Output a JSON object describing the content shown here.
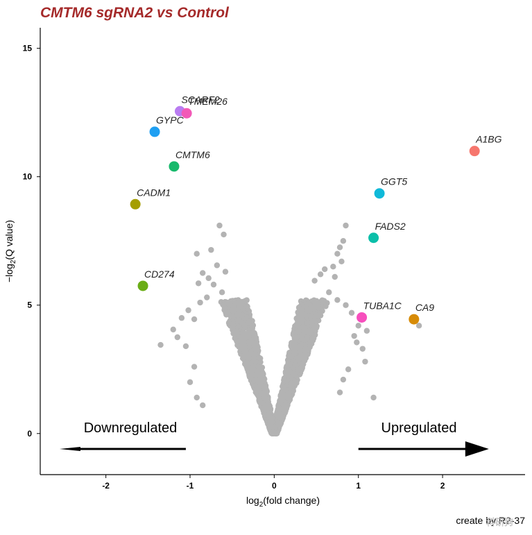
{
  "chart_data": {
    "type": "scatter",
    "title": "CMTM6 sgRNA2 vs Control",
    "title_color": "#a52a2a",
    "xlabel": "log2(fold change)",
    "ylabel": "-log2(Q value)",
    "xlim": [
      -2.78,
      2.98
    ],
    "ylim": [
      -1.6,
      15.8
    ],
    "xticks": [
      -2,
      -1,
      0,
      1,
      2
    ],
    "yticks": [
      0,
      5,
      10,
      15
    ],
    "grid": false,
    "background_color": "#b3b3b3",
    "down_label": "Downregulated",
    "up_label": "Upregulated",
    "arrows": {
      "down": {
        "from": [
          -1.05,
          -0.6
        ],
        "to": [
          -2.55,
          -0.6
        ]
      },
      "up": {
        "from": [
          1.0,
          -0.6
        ],
        "to": [
          2.55,
          -0.6
        ]
      }
    },
    "footer_text": "create by R2-37",
    "watermark": "科研狗",
    "highlighted": [
      {
        "gene": "SCARF2",
        "x": -1.12,
        "y": 12.55,
        "color": "#b97cf1"
      },
      {
        "gene": "TMEM26",
        "x": -1.04,
        "y": 12.47,
        "color": "#f25ab7"
      },
      {
        "gene": "GYPC",
        "x": -1.42,
        "y": 11.75,
        "color": "#1e9ff2"
      },
      {
        "gene": "CMTM6",
        "x": -1.19,
        "y": 10.4,
        "color": "#17b96b"
      },
      {
        "gene": "CADM1",
        "x": -1.65,
        "y": 8.93,
        "color": "#a59e00"
      },
      {
        "gene": "CD274",
        "x": -1.56,
        "y": 5.75,
        "color": "#6aad16"
      },
      {
        "gene": "A1BG",
        "x": 2.38,
        "y": 11.0,
        "color": "#f6766d"
      },
      {
        "gene": "GGT5",
        "x": 1.25,
        "y": 9.35,
        "color": "#0fb9d9"
      },
      {
        "gene": "FADS2",
        "x": 1.18,
        "y": 7.62,
        "color": "#0bbfa9"
      },
      {
        "gene": "TUBA1C",
        "x": 1.04,
        "y": 4.52,
        "color": "#f74fbd"
      },
      {
        "gene": "CA9",
        "x": 1.66,
        "y": 4.45,
        "color": "#d78b06"
      }
    ],
    "background_points": [
      [
        -0.65,
        8.1
      ],
      [
        -0.6,
        7.75
      ],
      [
        -0.75,
        7.15
      ],
      [
        -0.92,
        7.0
      ],
      [
        -0.68,
        6.55
      ],
      [
        -0.58,
        6.3
      ],
      [
        -0.85,
        6.25
      ],
      [
        -0.78,
        6.05
      ],
      [
        -0.9,
        5.85
      ],
      [
        -0.72,
        5.8
      ],
      [
        -0.62,
        5.5
      ],
      [
        -0.8,
        5.3
      ],
      [
        -0.88,
        5.1
      ],
      [
        -1.02,
        4.8
      ],
      [
        -1.1,
        4.5
      ],
      [
        -0.95,
        4.45
      ],
      [
        -1.2,
        4.05
      ],
      [
        -1.15,
        3.75
      ],
      [
        -1.35,
        3.45
      ],
      [
        -1.05,
        3.4
      ],
      [
        -0.95,
        2.6
      ],
      [
        -1.0,
        2.0
      ],
      [
        -0.92,
        1.4
      ],
      [
        -0.85,
        1.1
      ],
      [
        0.85,
        8.1
      ],
      [
        0.82,
        7.5
      ],
      [
        0.78,
        7.25
      ],
      [
        0.75,
        7.0
      ],
      [
        0.8,
        6.7
      ],
      [
        0.7,
        6.5
      ],
      [
        0.6,
        6.4
      ],
      [
        0.55,
        6.2
      ],
      [
        0.72,
        6.1
      ],
      [
        0.48,
        5.95
      ],
      [
        0.65,
        5.5
      ],
      [
        0.75,
        5.2
      ],
      [
        0.85,
        5.0
      ],
      [
        0.92,
        4.7
      ],
      [
        1.0,
        4.2
      ],
      [
        1.1,
        4.0
      ],
      [
        0.95,
        3.8
      ],
      [
        0.98,
        3.55
      ],
      [
        1.05,
        3.3
      ],
      [
        1.08,
        2.8
      ],
      [
        1.18,
        1.4
      ],
      [
        1.72,
        4.2
      ],
      [
        0.88,
        2.5
      ],
      [
        0.82,
        2.1
      ],
      [
        0.78,
        1.6
      ]
    ]
  }
}
